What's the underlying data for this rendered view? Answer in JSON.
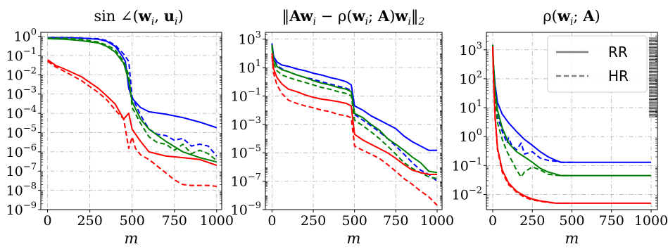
{
  "chart_data": [
    {
      "type": "line",
      "title": "sin ∠(w_i, u_i)",
      "title_parts": [
        "sin ∠(",
        "w",
        "i",
        ", ",
        "u",
        "i",
        ")"
      ],
      "xlabel": "m",
      "xlim": [
        -40,
        1030
      ],
      "ylog": true,
      "ylim": [
        1e-09,
        1.6
      ],
      "xticks": [
        0,
        250,
        500,
        750,
        1000
      ],
      "xtick_labels": [
        "0",
        "250",
        "500",
        "750",
        "1000"
      ],
      "ytick_exps": [
        0,
        -1,
        -2,
        -3,
        -4,
        -5,
        -6,
        -7,
        -8,
        -9
      ],
      "grid": true,
      "series": [
        {
          "color": "#0000ff",
          "style": "solid",
          "x": [
            0,
            100,
            200,
            300,
            350,
            400,
            440,
            460,
            480,
            500,
            550,
            600,
            700,
            800,
            900,
            1000
          ],
          "y": [
            0.85,
            0.85,
            0.8,
            0.7,
            0.55,
            0.3,
            0.1,
            0.05,
            0.002,
            0.0006,
            0.0002,
            0.00012,
            9e-05,
            6e-05,
            3.5e-05,
            1.8e-05
          ]
        },
        {
          "color": "#0000ff",
          "style": "dashed",
          "x": [
            0,
            100,
            200,
            300,
            350,
            400,
            450,
            480,
            500,
            550,
            600,
            650,
            700,
            750,
            800,
            850,
            900,
            950,
            1000
          ],
          "y": [
            0.85,
            0.85,
            0.8,
            0.75,
            0.6,
            0.35,
            0.12,
            0.05,
            0.0007,
            8e-05,
            1.5e-05,
            8e-06,
            7e-06,
            4e-06,
            5e-06,
            2e-06,
            2.5e-06,
            2e-06,
            6e-07
          ]
        },
        {
          "color": "#008000",
          "style": "solid",
          "x": [
            0,
            100,
            200,
            300,
            350,
            400,
            450,
            480,
            500,
            550,
            600,
            700,
            800,
            900,
            1000
          ],
          "y": [
            0.75,
            0.7,
            0.6,
            0.45,
            0.3,
            0.15,
            0.04,
            0.005,
            0.0004,
            5e-05,
            1.5e-05,
            3.5e-06,
            1e-06,
            5e-07,
            3e-07
          ]
        },
        {
          "color": "#008000",
          "style": "dashed",
          "x": [
            0,
            100,
            200,
            300,
            350,
            400,
            450,
            480,
            500,
            550,
            600,
            650,
            700,
            750,
            800,
            850,
            900,
            950,
            1000
          ],
          "y": [
            0.8,
            0.8,
            0.7,
            0.5,
            0.35,
            0.2,
            0.05,
            0.01,
            0.0002,
            3e-05,
            6e-06,
            3e-06,
            2.5e-06,
            1.2e-06,
            2.5e-06,
            8e-07,
            1.2e-06,
            8e-07,
            3.5e-07
          ]
        },
        {
          "color": "#ff0000",
          "style": "solid",
          "x": [
            0,
            50,
            100,
            200,
            300,
            350,
            400,
            450,
            480,
            500,
            550,
            600,
            700,
            800,
            900,
            1000
          ],
          "y": [
            0.06,
            0.03,
            0.02,
            0.008,
            0.002,
            0.0008,
            0.0003,
            5e-05,
            0.0001,
            1.5e-05,
            3.5e-06,
            1e-06,
            6e-07,
            5e-07,
            4e-07,
            2e-07
          ]
        },
        {
          "color": "#ff0000",
          "style": "dashed",
          "x": [
            0,
            50,
            100,
            200,
            300,
            350,
            400,
            450,
            480,
            500,
            520,
            550,
            600,
            700,
            750,
            800,
            850,
            900,
            950,
            1000
          ],
          "y": [
            0.05,
            0.025,
            0.015,
            0.005,
            0.0012,
            0.0005,
            0.00015,
            5e-05,
            1.5e-06,
            6e-06,
            1.5e-06,
            7e-07,
            4e-07,
            8e-08,
            3.5e-08,
            2e-08,
            1.8e-08,
            1.8e-08,
            1.8e-08,
            1.6e-08
          ]
        }
      ]
    },
    {
      "type": "line",
      "title": "‖Aw_i − ρ(w_i; A)w_i‖_2",
      "title_parts": [
        "‖",
        "Aw",
        "i",
        " − ρ(",
        "w",
        "i",
        "; ",
        "A",
        ")",
        "w",
        "i",
        "‖",
        "2"
      ],
      "xlabel": "m",
      "xlim": [
        -40,
        1030
      ],
      "ylog": true,
      "ylim": [
        1e-09,
        3000
      ],
      "xticks": [
        0,
        250,
        500,
        750,
        1000
      ],
      "xtick_labels": [
        "0",
        "250",
        "500",
        "750",
        "1000"
      ],
      "ytick_exps": [
        3,
        1,
        -1,
        -3,
        -5,
        -7,
        -9
      ],
      "grid": true,
      "series": [
        {
          "color": "#0000ff",
          "style": "solid",
          "x": [
            0,
            10,
            30,
            60,
            100,
            150,
            200,
            250,
            300,
            350,
            400,
            450,
            480,
            500,
            550,
            600,
            650,
            700,
            750,
            800,
            850,
            900,
            950,
            1000
          ],
          "y": [
            500,
            60,
            25,
            15,
            12,
            8,
            6,
            4,
            3,
            2,
            1.5,
            1,
            0.6,
            0.02,
            0.01,
            0.004,
            0.002,
            0.001,
            0.0005,
            0.00015,
            6e-05,
            3e-05,
            1.5e-05,
            1.5e-05
          ]
        },
        {
          "color": "#0000ff",
          "style": "dashed",
          "x": [
            0,
            10,
            30,
            60,
            100,
            150,
            200,
            250,
            300,
            350,
            400,
            450,
            480,
            500,
            550,
            600,
            650,
            700,
            750,
            800,
            850,
            900,
            950,
            1000
          ],
          "y": [
            350,
            40,
            15,
            8,
            5,
            3,
            2,
            1.5,
            1,
            0.7,
            0.5,
            0.35,
            0.25,
            0.005,
            0.002,
            0.0008,
            0.0003,
            0.0001,
            3e-05,
            8e-06,
            2e-06,
            6e-07,
            3e-07,
            1e-07
          ]
        },
        {
          "color": "#008000",
          "style": "solid",
          "x": [
            0,
            10,
            30,
            60,
            100,
            150,
            200,
            250,
            300,
            350,
            400,
            450,
            480,
            500,
            550,
            600,
            650,
            700,
            750,
            800,
            850,
            900,
            950,
            1000
          ],
          "y": [
            400,
            35,
            12,
            7,
            5,
            3,
            2,
            1.2,
            0.8,
            0.6,
            0.4,
            0.3,
            0.2,
            0.006,
            0.003,
            0.001,
            0.0004,
            0.0001,
            4e-05,
            1.5e-05,
            5e-06,
            2e-06,
            5e-07,
            4e-07
          ]
        },
        {
          "color": "#008000",
          "style": "dashed",
          "x": [
            0,
            10,
            30,
            60,
            100,
            150,
            200,
            250,
            300,
            350,
            400,
            450,
            480,
            500,
            550,
            600,
            650,
            700,
            750,
            800,
            850,
            900,
            950,
            1000
          ],
          "y": [
            250,
            20,
            6,
            3,
            2,
            1.3,
            0.9,
            0.6,
            0.4,
            0.3,
            0.2,
            0.15,
            0.1,
            0.002,
            0.0008,
            0.0003,
            0.0001,
            3e-05,
            8e-06,
            2e-06,
            8e-07,
            4e-07,
            2e-07,
            1.5e-07
          ]
        },
        {
          "color": "#ff0000",
          "style": "solid",
          "x": [
            0,
            10,
            30,
            60,
            100,
            150,
            200,
            250,
            300,
            350,
            400,
            450,
            480,
            500,
            550,
            600,
            650,
            700,
            750,
            800,
            850,
            900,
            950,
            1000
          ],
          "y": [
            100,
            8,
            2,
            0.7,
            0.3,
            0.2,
            0.12,
            0.08,
            0.06,
            0.05,
            0.04,
            0.03,
            0.02,
            0.0002,
            8e-05,
            4e-05,
            2e-05,
            1e-05,
            4e-06,
            1.5e-06,
            6e-07,
            4e-07,
            3e-07,
            3e-07
          ]
        },
        {
          "color": "#ff0000",
          "style": "dashed",
          "x": [
            0,
            10,
            30,
            60,
            100,
            150,
            200,
            250,
            300,
            350,
            400,
            450,
            480,
            500,
            550,
            600,
            650,
            700,
            750,
            800,
            850,
            900,
            950,
            1000
          ],
          "y": [
            60,
            4,
            0.6,
            0.15,
            0.05,
            0.03,
            0.02,
            0.015,
            0.01,
            0.008,
            0.005,
            0.004,
            0.003,
            3e-05,
            1.5e-05,
            8e-06,
            4e-06,
            1.5e-06,
            5e-07,
            1.5e-07,
            6e-08,
            2e-08,
            8e-09,
            2e-09
          ]
        }
      ]
    },
    {
      "type": "line",
      "title": "ρ(w_i; A)",
      "title_parts": [
        "ρ(",
        "w",
        "i",
        "; ",
        "A",
        ")"
      ],
      "xlabel": "m",
      "xlim": [
        -40,
        1040
      ],
      "ylog": true,
      "ylim": [
        0.003,
        4000
      ],
      "xticks": [
        0,
        250,
        500,
        750,
        1000
      ],
      "xtick_labels": [
        "0",
        "250",
        "500",
        "750",
        "1000"
      ],
      "ytick_exps": [
        3,
        2,
        1,
        0,
        -1,
        -2
      ],
      "grid": true,
      "legend": {
        "position": "top-right",
        "entries": [
          {
            "label": "RR",
            "style": "solid"
          },
          {
            "label": "HR",
            "style": "dashed"
          }
        ]
      },
      "series": [
        {
          "color": "#0000ff",
          "style": "solid",
          "x": [
            0,
            5,
            15,
            30,
            60,
            100,
            150,
            200,
            250,
            300,
            350,
            400,
            430,
            500,
            600,
            700,
            800,
            900,
            1000
          ],
          "y": [
            1500,
            300,
            60,
            15,
            6,
            3,
            1.5,
            0.8,
            0.5,
            0.3,
            0.2,
            0.15,
            0.13,
            0.13,
            0.13,
            0.13,
            0.13,
            0.13,
            0.13
          ]
        },
        {
          "color": "#0000ff",
          "style": "dashed",
          "x": [
            0,
            5,
            15,
            30,
            60,
            90,
            100,
            120,
            150,
            180,
            200,
            250,
            300,
            350,
            400,
            430,
            500
          ],
          "y": [
            1500,
            200,
            30,
            5,
            1.5,
            0.6,
            0.9,
            0.5,
            0.35,
            0.6,
            0.25,
            0.3,
            0.18,
            0.15,
            0.14,
            0.13,
            0.13
          ]
        },
        {
          "color": "#008000",
          "style": "solid",
          "x": [
            0,
            5,
            15,
            30,
            60,
            100,
            150,
            200,
            250,
            300,
            350,
            400,
            430,
            500,
            600,
            700,
            800,
            900,
            1000
          ],
          "y": [
            1500,
            300,
            40,
            8,
            2,
            0.6,
            0.3,
            0.2,
            0.13,
            0.08,
            0.06,
            0.05,
            0.045,
            0.045,
            0.045,
            0.045,
            0.045,
            0.045,
            0.045
          ]
        },
        {
          "color": "#008000",
          "style": "dashed",
          "x": [
            0,
            5,
            15,
            30,
            60,
            90,
            120,
            150,
            180,
            200,
            250,
            300,
            350,
            400,
            430,
            500
          ],
          "y": [
            1500,
            150,
            20,
            3,
            0.8,
            0.3,
            0.15,
            0.07,
            0.04,
            0.06,
            0.09,
            0.07,
            0.05,
            0.046,
            0.045,
            0.045
          ]
        },
        {
          "color": "#ff0000",
          "style": "solid",
          "x": [
            0,
            5,
            15,
            30,
            60,
            100,
            150,
            200,
            250,
            300,
            350,
            400,
            450,
            500,
            600,
            700,
            800,
            900,
            1000
          ],
          "y": [
            1300,
            100,
            5,
            0.4,
            0.07,
            0.025,
            0.013,
            0.009,
            0.007,
            0.006,
            0.0055,
            0.005,
            0.005,
            0.005,
            0.005,
            0.005,
            0.005,
            0.005,
            0.005
          ]
        },
        {
          "color": "#ff0000",
          "style": "dashed",
          "x": [
            0,
            5,
            15,
            30,
            60,
            100,
            150,
            200,
            250,
            300,
            350,
            400,
            450,
            500
          ],
          "y": [
            1300,
            80,
            4,
            0.35,
            0.06,
            0.022,
            0.012,
            0.008,
            0.0065,
            0.0058,
            0.0053,
            0.005,
            0.005,
            0.005
          ]
        }
      ]
    }
  ]
}
